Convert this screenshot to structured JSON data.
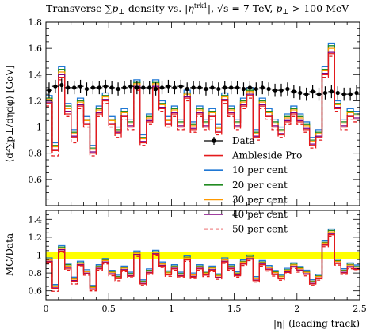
{
  "chart_data": {
    "type": "line",
    "title": "Transverse ∑p⊥ density vs. |η^trk1|, √s = 7 TeV, p⊥ > 100 MeV",
    "title_parts": {
      "prefix": "Transverse ∑",
      "p": "p",
      "perp": "⊥",
      "density_vs": " density vs. |",
      "eta": "η",
      "sup": "trk1",
      "bar": "|, ",
      "sqrt_s": "√s = 7 TeV, ",
      "p2": "p",
      "perp2": "⊥",
      "gt": " > 100 MeV"
    },
    "xlabel": "|η| (leading track)",
    "ylabel_main": "⟨d²∑p⊥/dηdφ⟩ [GeV]",
    "ylabel_ratio": "MC/Data",
    "xlim": [
      0,
      2.5
    ],
    "ylim_main": [
      0.4,
      1.8
    ],
    "ylim_ratio": [
      0.5,
      1.5
    ],
    "x_ticks": [
      0,
      0.5,
      1,
      1.5,
      2,
      2.5
    ],
    "x_tick_labels": [
      "0",
      "0.5",
      "1",
      "1.5",
      "2",
      "2.5"
    ],
    "y_ticks_main": [
      0.4,
      0.6,
      0.8,
      1,
      1.2,
      1.4,
      1.6,
      1.8
    ],
    "y_tick_labels_main": [
      "0.4",
      "0.6",
      "0.8",
      "1",
      "1.2",
      "1.4",
      "1.6",
      "1.8"
    ],
    "y_ticks_ratio": [
      0.6,
      0.8,
      1,
      1.2,
      1.4
    ],
    "y_tick_labels_ratio": [
      "0.6",
      "0.8",
      "1",
      "1.2",
      "1.4"
    ],
    "legend_position": "right, center",
    "data_band_color": "#ffff00",
    "series": [
      {
        "name": "Data",
        "color": "#000000",
        "style": "points"
      },
      {
        "name": "Ambleside Pro",
        "color": "#e41a1c",
        "style": "solid"
      },
      {
        "name": "10 per cent",
        "color": "#1f77d4",
        "style": "solid"
      },
      {
        "name": "20 per cent",
        "color": "#228b22",
        "style": "solid"
      },
      {
        "name": "30 per cent",
        "color": "#ff9900",
        "style": "solid"
      },
      {
        "name": "40 per cent",
        "color": "#800080",
        "style": "solid"
      },
      {
        "name": "50 per cent",
        "color": "#e41a1c",
        "style": "dashed"
      }
    ],
    "bins": [
      0,
      0.05,
      0.1,
      0.15,
      0.2,
      0.25,
      0.3,
      0.35,
      0.4,
      0.45,
      0.5,
      0.55,
      0.6,
      0.65,
      0.7,
      0.75,
      0.8,
      0.85,
      0.9,
      0.95,
      1.0,
      1.05,
      1.1,
      1.15,
      1.2,
      1.25,
      1.3,
      1.35,
      1.4,
      1.45,
      1.5,
      1.55,
      1.6,
      1.65,
      1.7,
      1.75,
      1.8,
      1.85,
      1.9,
      1.95,
      2.0,
      2.05,
      2.1,
      2.15,
      2.2,
      2.25,
      2.3,
      2.35,
      2.4,
      2.45,
      2.5
    ],
    "data_values": [
      1.28,
      1.31,
      1.32,
      1.3,
      1.3,
      1.31,
      1.29,
      1.3,
      1.3,
      1.31,
      1.3,
      1.29,
      1.3,
      1.31,
      1.3,
      1.3,
      1.3,
      1.29,
      1.3,
      1.31,
      1.3,
      1.31,
      1.29,
      1.3,
      1.3,
      1.29,
      1.3,
      1.29,
      1.3,
      1.3,
      1.3,
      1.29,
      1.3,
      1.29,
      1.3,
      1.29,
      1.28,
      1.28,
      1.29,
      1.27,
      1.26,
      1.25,
      1.27,
      1.25,
      1.26,
      1.27,
      1.26,
      1.25,
      1.25,
      1.26
    ],
    "data_errors": [
      0.06,
      0.05,
      0.05,
      0.05,
      0.05,
      0.05,
      0.05,
      0.05,
      0.05,
      0.05,
      0.05,
      0.05,
      0.05,
      0.05,
      0.05,
      0.05,
      0.05,
      0.05,
      0.05,
      0.05,
      0.05,
      0.05,
      0.05,
      0.05,
      0.05,
      0.05,
      0.05,
      0.05,
      0.05,
      0.05,
      0.05,
      0.05,
      0.05,
      0.05,
      0.05,
      0.05,
      0.05,
      0.05,
      0.05,
      0.05,
      0.05,
      0.05,
      0.05,
      0.05,
      0.05,
      0.05,
      0.05,
      0.05,
      0.05,
      0.06
    ],
    "mc_values": {
      "ambleside": [
        1.18,
        0.82,
        1.38,
        1.1,
        0.92,
        1.16,
        1.02,
        0.8,
        1.1,
        1.2,
        1.02,
        0.95,
        1.08,
        1.0,
        1.3,
        0.88,
        1.04,
        1.3,
        1.14,
        1.02,
        1.1,
        1.0,
        1.22,
        0.98,
        1.1,
        1.0,
        1.08,
        0.96,
        1.2,
        1.1,
        1.0,
        1.16,
        1.24,
        0.92,
        1.16,
        1.08,
        1.0,
        0.94,
        1.04,
        1.1,
        1.04,
        0.98,
        0.86,
        0.92,
        1.4,
        1.56,
        1.14,
        1.0,
        1.08,
        1.06
      ],
      "p10": [
        1.24,
        0.88,
        1.46,
        1.18,
        0.98,
        1.22,
        1.08,
        0.86,
        1.16,
        1.26,
        1.08,
        1.0,
        1.14,
        1.06,
        1.36,
        0.94,
        1.1,
        1.36,
        1.2,
        1.08,
        1.16,
        1.06,
        1.28,
        1.04,
        1.16,
        1.06,
        1.14,
        1.02,
        1.26,
        1.16,
        1.06,
        1.22,
        1.3,
        0.98,
        1.22,
        1.14,
        1.06,
        1.0,
        1.1,
        1.16,
        1.1,
        1.04,
        0.92,
        0.98,
        1.46,
        1.64,
        1.2,
        1.06,
        1.14,
        1.12
      ],
      "p20": [
        1.22,
        0.86,
        1.44,
        1.16,
        0.96,
        1.2,
        1.06,
        0.84,
        1.14,
        1.24,
        1.06,
        0.98,
        1.12,
        1.04,
        1.34,
        0.92,
        1.08,
        1.34,
        1.18,
        1.06,
        1.14,
        1.04,
        1.26,
        1.02,
        1.14,
        1.04,
        1.12,
        1.0,
        1.24,
        1.14,
        1.04,
        1.2,
        1.28,
        0.96,
        1.2,
        1.12,
        1.04,
        0.98,
        1.08,
        1.14,
        1.08,
        1.02,
        0.9,
        0.96,
        1.44,
        1.62,
        1.18,
        1.04,
        1.12,
        1.1
      ],
      "p30": [
        1.21,
        0.85,
        1.42,
        1.14,
        0.95,
        1.19,
        1.05,
        0.83,
        1.13,
        1.23,
        1.05,
        0.97,
        1.11,
        1.03,
        1.33,
        0.91,
        1.07,
        1.33,
        1.17,
        1.05,
        1.13,
        1.03,
        1.25,
        1.01,
        1.13,
        1.03,
        1.11,
        0.99,
        1.23,
        1.13,
        1.03,
        1.19,
        1.27,
        0.95,
        1.19,
        1.11,
        1.03,
        0.97,
        1.07,
        1.13,
        1.07,
        1.01,
        0.89,
        0.95,
        1.43,
        1.6,
        1.17,
        1.03,
        1.11,
        1.09
      ],
      "p40": [
        1.19,
        0.83,
        1.4,
        1.12,
        0.93,
        1.17,
        1.03,
        0.81,
        1.11,
        1.21,
        1.03,
        0.96,
        1.09,
        1.01,
        1.31,
        0.89,
        1.05,
        1.31,
        1.15,
        1.03,
        1.11,
        1.01,
        1.23,
        0.99,
        1.11,
        1.01,
        1.09,
        0.97,
        1.21,
        1.11,
        1.01,
        1.17,
        1.25,
        0.93,
        1.17,
        1.09,
        1.01,
        0.95,
        1.05,
        1.11,
        1.05,
        0.99,
        0.87,
        0.93,
        1.41,
        1.57,
        1.15,
        1.01,
        1.09,
        1.07
      ],
      "p50": [
        1.16,
        0.78,
        1.36,
        1.08,
        0.88,
        1.14,
        1.0,
        0.78,
        1.08,
        1.18,
        1.0,
        0.92,
        1.06,
        0.98,
        1.28,
        0.86,
        1.02,
        1.28,
        1.12,
        1.0,
        1.08,
        0.98,
        1.2,
        0.96,
        1.08,
        0.98,
        1.06,
        0.94,
        1.18,
        1.08,
        0.98,
        1.14,
        1.22,
        0.9,
        1.14,
        1.06,
        0.98,
        0.92,
        1.02,
        1.08,
        1.02,
        0.96,
        0.84,
        0.9,
        1.38,
        1.54,
        1.12,
        0.98,
        1.06,
        1.04
      ]
    }
  }
}
